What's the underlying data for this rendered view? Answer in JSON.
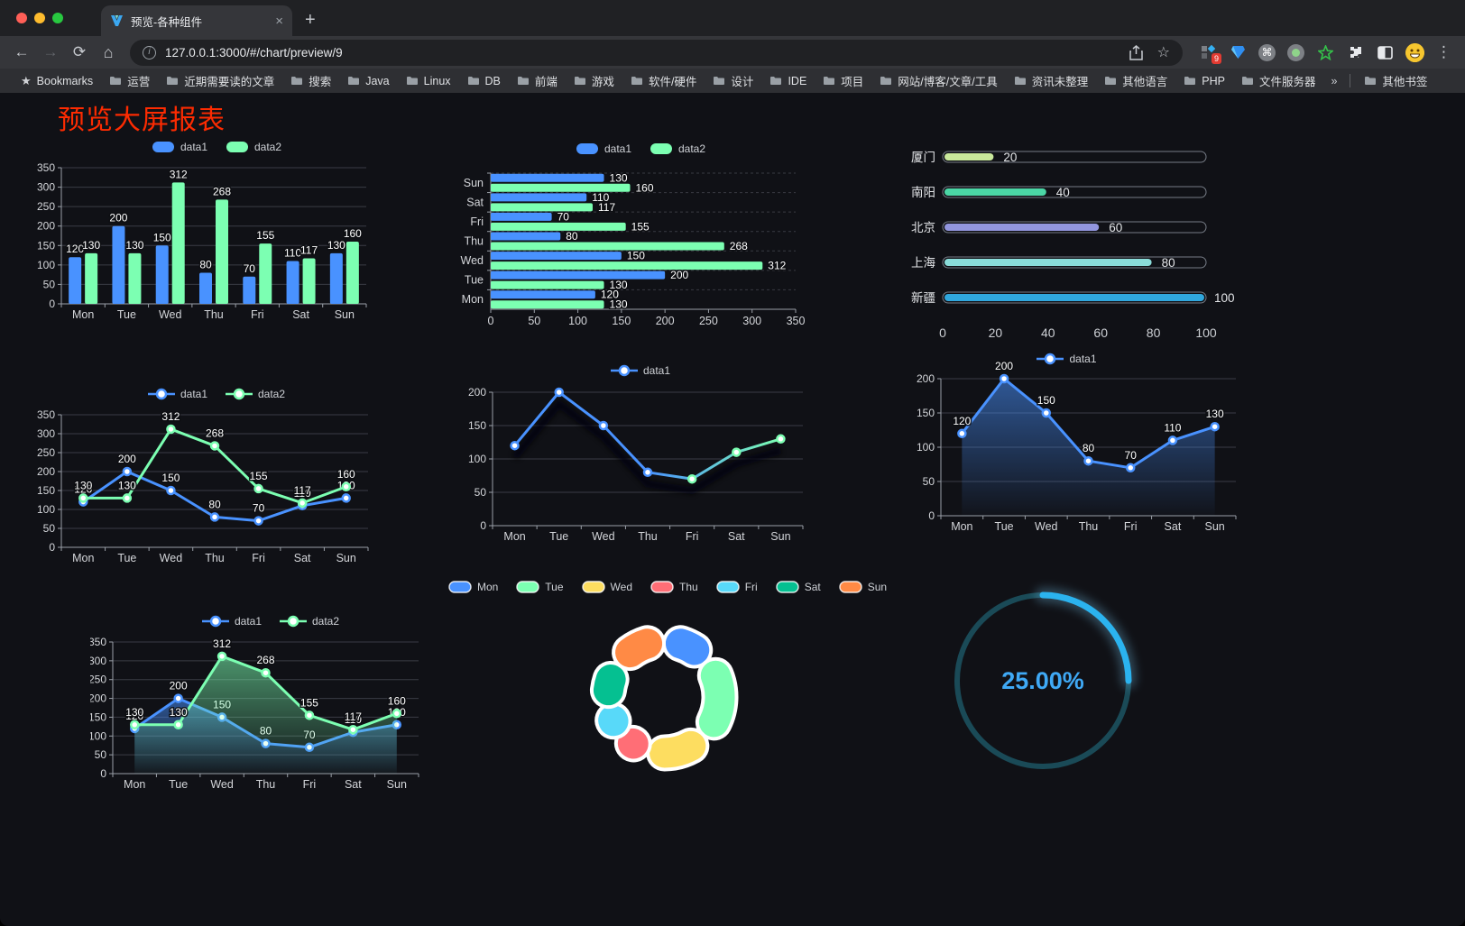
{
  "browser": {
    "tab_title": "预览-各种组件",
    "close_tab_glyph": "×",
    "new_tab_glyph": "+",
    "url": "127.0.0.1:3000/#/chart/preview/9",
    "nav": {
      "back": "←",
      "forward": "→",
      "reload": "⟳",
      "home": "⌂"
    },
    "share_icon": "share",
    "bookmark_star": "☆",
    "menu_glyph": "⋮",
    "extension_badge": "9",
    "command_glyph": "⌘",
    "bookmarks_label": "Bookmarks",
    "bookmark_folders": [
      "运营",
      "近期需要读的文章",
      "搜索",
      "Java",
      "Linux",
      "DB",
      "前端",
      "游戏",
      "软件/硬件",
      "设计",
      "IDE",
      "项目",
      "网站/博客/文章/工具",
      "资讯未整理",
      "其他语言",
      "PHP",
      "文件服务器"
    ],
    "overflow_chevron": "»",
    "other_bookmarks": "其他书签"
  },
  "page": {
    "title": "预览大屏报表",
    "title_color": "#fd2b01",
    "background": "#101116"
  },
  "palette": {
    "blue": "#4992ff",
    "green": "#7cffb2",
    "yellow": "#fddd60",
    "red": "#ff6e76",
    "lightblue": "#58d9f9",
    "teal": "#05c091",
    "orange": "#ff8a45"
  },
  "chart_data": [
    {
      "id": "c1",
      "type": "bar",
      "categories": [
        "Mon",
        "Tue",
        "Wed",
        "Thu",
        "Fri",
        "Sat",
        "Sun"
      ],
      "series": [
        {
          "name": "data1",
          "color": "#4992ff",
          "values": [
            120,
            200,
            150,
            80,
            70,
            110,
            130
          ]
        },
        {
          "name": "data2",
          "color": "#7cffb2",
          "values": [
            130,
            130,
            312,
            268,
            155,
            117,
            160
          ]
        }
      ],
      "ylim": [
        0,
        350
      ],
      "ytick_step": 50,
      "legend_position": "top",
      "value_labels": true
    },
    {
      "id": "c2",
      "type": "bar-horizontal",
      "categories_top_to_bottom": [
        "Sun",
        "Sat",
        "Fri",
        "Thu",
        "Wed",
        "Tue",
        "Mon"
      ],
      "series": [
        {
          "name": "data1",
          "color": "#4992ff",
          "values_mon_to_sun": [
            120,
            200,
            150,
            80,
            70,
            110,
            130
          ]
        },
        {
          "name": "data2",
          "color": "#7cffb2",
          "values_mon_to_sun": [
            130,
            130,
            312,
            268,
            155,
            117,
            160
          ]
        }
      ],
      "xlim": [
        0,
        350
      ],
      "xtick_step": 50,
      "value_labels": true
    },
    {
      "id": "c3",
      "type": "progress-bars",
      "max": 100,
      "xticks": [
        0,
        20,
        40,
        60,
        80,
        100
      ],
      "items": [
        {
          "label": "厦门",
          "value": 20,
          "color": "#c9e89b"
        },
        {
          "label": "南阳",
          "value": 40,
          "color": "#4bd6a5"
        },
        {
          "label": "北京",
          "value": 60,
          "color": "#9296de"
        },
        {
          "label": "上海",
          "value": 80,
          "color": "#8adcd9"
        },
        {
          "label": "新疆",
          "value": 100,
          "color": "#30a7dd"
        }
      ]
    },
    {
      "id": "c4",
      "type": "line",
      "categories": [
        "Mon",
        "Tue",
        "Wed",
        "Thu",
        "Fri",
        "Sat",
        "Sun"
      ],
      "series": [
        {
          "name": "data1",
          "color": "#4992ff",
          "values": [
            120,
            200,
            150,
            80,
            70,
            110,
            130
          ]
        },
        {
          "name": "data2",
          "color": "#7cffb2",
          "values": [
            130,
            130,
            312,
            268,
            155,
            117,
            160
          ]
        }
      ],
      "ylim": [
        0,
        350
      ],
      "ytick_step": 50,
      "value_labels": true
    },
    {
      "id": "c5",
      "type": "line",
      "categories": [
        "Mon",
        "Tue",
        "Wed",
        "Thu",
        "Fri",
        "Sat",
        "Sun"
      ],
      "series": [
        {
          "name": "data1",
          "color": "#4992ff",
          "gradient_to": "#7cffb2",
          "shadow": true,
          "values": [
            120,
            200,
            150,
            80,
            70,
            110,
            130
          ]
        }
      ],
      "ylim": [
        0,
        200
      ],
      "ytick_step": 50,
      "value_labels": false
    },
    {
      "id": "c6",
      "type": "area",
      "categories": [
        "Mon",
        "Tue",
        "Wed",
        "Thu",
        "Fri",
        "Sat",
        "Sun"
      ],
      "series": [
        {
          "name": "data1",
          "color": "#4992ff",
          "area": true,
          "values": [
            120,
            200,
            150,
            80,
            70,
            110,
            130
          ]
        }
      ],
      "ylim": [
        0,
        200
      ],
      "ytick_step": 50,
      "value_labels": true
    },
    {
      "id": "c7",
      "type": "area",
      "categories": [
        "Mon",
        "Tue",
        "Wed",
        "Thu",
        "Fri",
        "Sat",
        "Sun"
      ],
      "series": [
        {
          "name": "data1",
          "color": "#4992ff",
          "area": true,
          "values": [
            120,
            200,
            150,
            80,
            70,
            110,
            130
          ]
        },
        {
          "name": "data2",
          "color": "#7cffb2",
          "area": true,
          "values": [
            130,
            130,
            312,
            268,
            155,
            117,
            160
          ]
        }
      ],
      "ylim": [
        0,
        350
      ],
      "ytick_step": 50,
      "value_labels": true
    },
    {
      "id": "c8",
      "type": "pie",
      "donut": true,
      "legend": [
        "Mon",
        "Tue",
        "Wed",
        "Thu",
        "Fri",
        "Sat",
        "Sun"
      ],
      "values": [
        120,
        200,
        150,
        80,
        70,
        110,
        130
      ],
      "colors": [
        "#4992ff",
        "#7cffb2",
        "#fddd60",
        "#ff6e76",
        "#58d9f9",
        "#05c091",
        "#ff8a45"
      ]
    },
    {
      "id": "c9",
      "type": "gauge",
      "percent": 25,
      "label": "25.00%",
      "color": "#2bb3ef",
      "track_color": "#1a4a57",
      "text_color": "#3fa9f5"
    }
  ]
}
